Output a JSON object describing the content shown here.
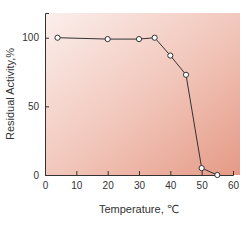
{
  "chart_data": {
    "type": "line",
    "x_label": "Temperature, ℃",
    "y_label": "Residual Activity,%",
    "x": [
      4,
      20,
      30,
      35,
      40,
      45,
      50,
      55
    ],
    "values": [
      100,
      99,
      99,
      100,
      87,
      73,
      5,
      0
    ],
    "color": "#333333",
    "marker": "circle",
    "xlim": [
      0,
      60
    ],
    "xticks": [
      0,
      10,
      20,
      30,
      40,
      50,
      60
    ],
    "ylim": [
      0,
      118
    ],
    "yticks": [
      0,
      50,
      100
    ],
    "grid": false
  }
}
